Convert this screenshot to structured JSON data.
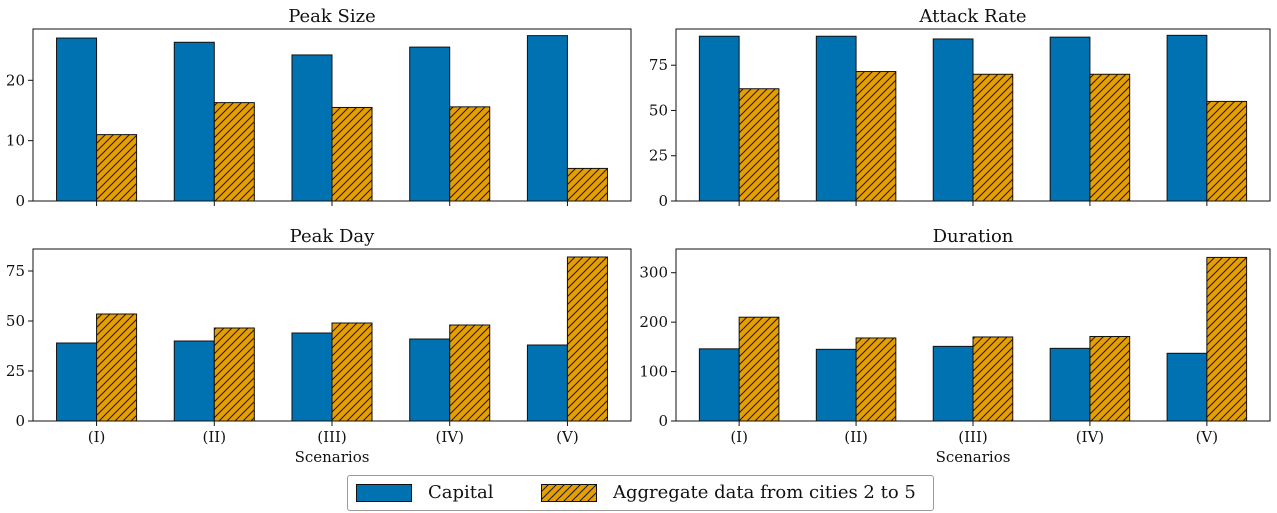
{
  "colors": {
    "capital": "#0072B2",
    "aggregate": "#E69F00"
  },
  "legend": {
    "capital_label": "Capital",
    "aggregate_label": "Aggregate data from cities 2 to 5"
  },
  "chart_data": [
    {
      "type": "bar",
      "title": "Peak Size",
      "categories": [
        "(I)",
        "(II)",
        "(III)",
        "(IV)",
        "(V)"
      ],
      "show_xticks": false,
      "xlabel": "",
      "ylim": [
        0,
        28.5
      ],
      "yticks": [
        0,
        10,
        20
      ],
      "series": [
        {
          "name": "Capital",
          "values": [
            27.0,
            26.3,
            24.2,
            25.5,
            27.4
          ]
        },
        {
          "name": "Aggregate data from cities 2 to 5",
          "values": [
            11.0,
            16.3,
            15.5,
            15.6,
            5.4
          ]
        }
      ]
    },
    {
      "type": "bar",
      "title": "Attack Rate",
      "categories": [
        "(I)",
        "(II)",
        "(III)",
        "(IV)",
        "(V)"
      ],
      "show_xticks": false,
      "xlabel": "",
      "ylim": [
        0,
        95
      ],
      "yticks": [
        0,
        25,
        50,
        75
      ],
      "series": [
        {
          "name": "Capital",
          "values": [
            91,
            91,
            89.5,
            90.5,
            91.5
          ]
        },
        {
          "name": "Aggregate data from cities 2 to 5",
          "values": [
            62,
            71.5,
            70,
            70,
            55
          ]
        }
      ]
    },
    {
      "type": "bar",
      "title": "Peak Day",
      "categories": [
        "(I)",
        "(II)",
        "(III)",
        "(IV)",
        "(V)"
      ],
      "show_xticks": true,
      "xlabel": "Scenarios",
      "ylim": [
        0,
        86
      ],
      "yticks": [
        0,
        25,
        50,
        75
      ],
      "series": [
        {
          "name": "Capital",
          "values": [
            39,
            40,
            44,
            41,
            38
          ]
        },
        {
          "name": "Aggregate data from cities 2 to 5",
          "values": [
            53.5,
            46.5,
            49,
            48,
            82
          ]
        }
      ]
    },
    {
      "type": "bar",
      "title": "Duration",
      "categories": [
        "(I)",
        "(II)",
        "(III)",
        "(IV)",
        "(V)"
      ],
      "show_xticks": true,
      "xlabel": "Scenarios",
      "ylim": [
        0,
        348
      ],
      "yticks": [
        0,
        100,
        200,
        300
      ],
      "series": [
        {
          "name": "Capital",
          "values": [
            146,
            145,
            151,
            147,
            137
          ]
        },
        {
          "name": "Aggregate data from cities 2 to 5",
          "values": [
            210,
            168,
            170,
            171,
            331
          ]
        }
      ]
    }
  ]
}
